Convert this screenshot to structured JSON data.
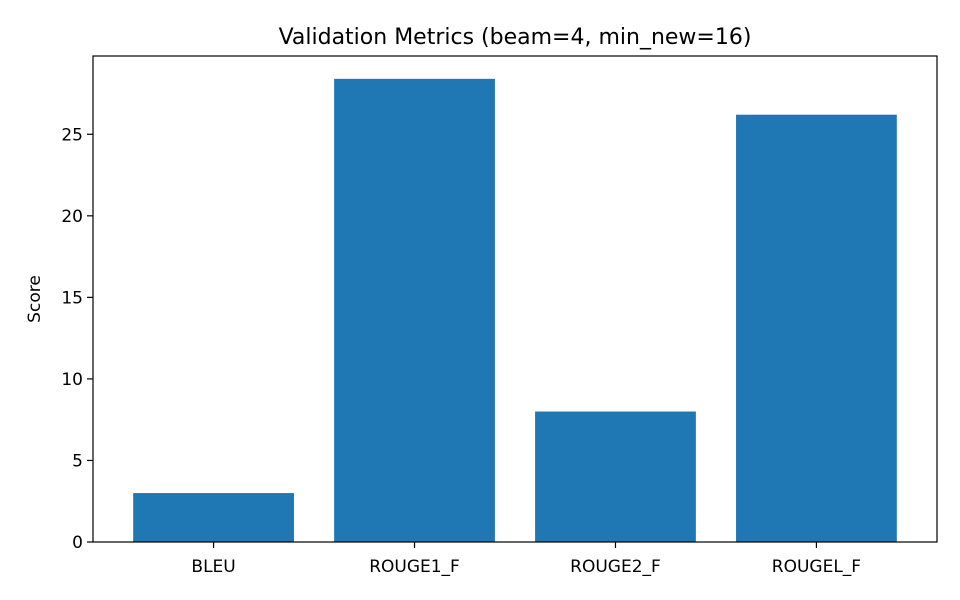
{
  "chart_data": {
    "type": "bar",
    "title": "Validation Metrics (beam=4, min_new=16)",
    "xlabel": "",
    "ylabel": "Score",
    "categories": [
      "BLEU",
      "ROUGE1_F",
      "ROUGE2_F",
      "ROUGEL_F"
    ],
    "values": [
      3.0,
      28.4,
      8.0,
      26.2
    ],
    "ylim": [
      0,
      29.8
    ],
    "yticks": [
      0,
      5,
      10,
      15,
      20,
      25
    ],
    "grid": false,
    "colors": {
      "bar": "#1f77b4"
    }
  }
}
